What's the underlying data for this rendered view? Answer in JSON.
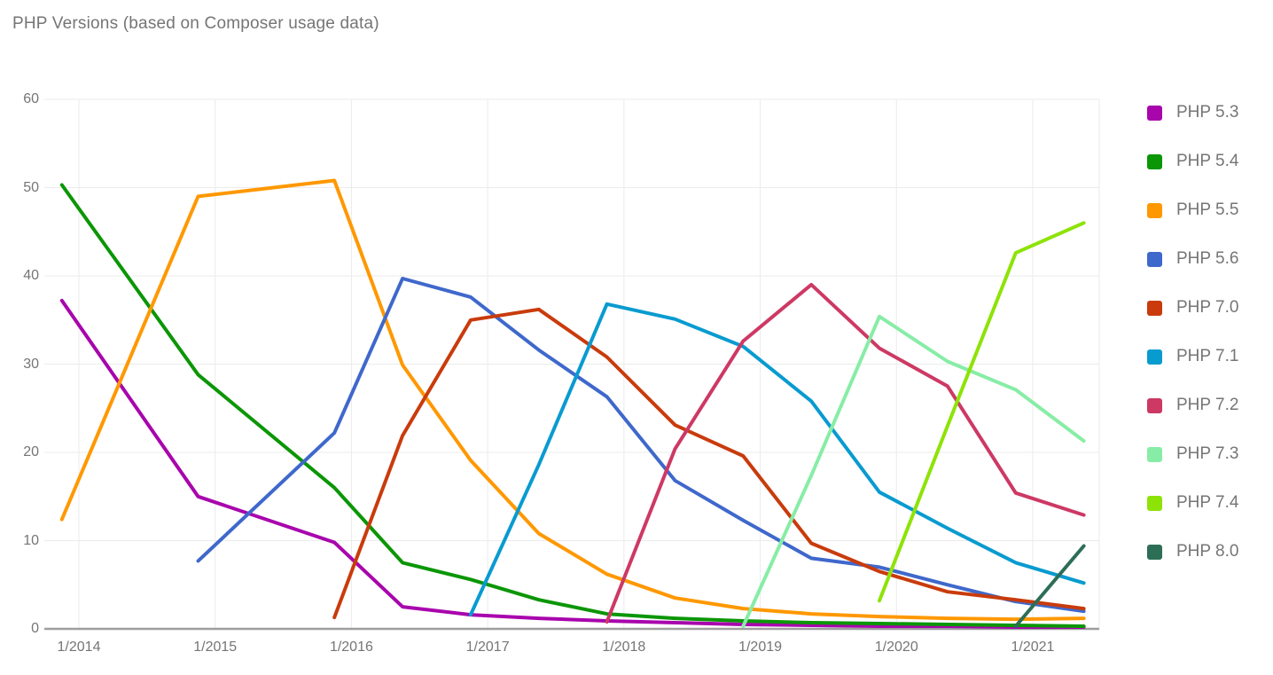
{
  "title": "PHP Versions (based on Composer usage data)",
  "chart_data": {
    "type": "line",
    "title": "PHP Versions (based on Composer usage data)",
    "xlabel": "",
    "ylabel": "",
    "x_tick_labels": [
      "1/2014",
      "1/2015",
      "1/2016",
      "1/2017",
      "1/2018",
      "1/2019",
      "1/2020",
      "1/2021"
    ],
    "y_ticks": [
      0,
      10,
      20,
      30,
      40,
      50,
      60
    ],
    "ylim": [
      0,
      60
    ],
    "grid": true,
    "legend_position": "right",
    "colors": {
      "axis": "#9e9e9e",
      "grid": "#ebebeb",
      "text": "#757575"
    },
    "series": [
      {
        "name": "PHP 5.3",
        "color": "#a805ad",
        "points": [
          [
            "2013-11",
            37.2
          ],
          [
            "2014-11",
            15.0
          ],
          [
            "2015-11",
            9.8
          ],
          [
            "2016-05",
            2.5
          ],
          [
            "2016-11",
            1.6
          ],
          [
            "2017-05",
            1.2
          ],
          [
            "2017-11",
            0.9
          ],
          [
            "2018-05",
            0.7
          ],
          [
            "2018-11",
            0.5
          ],
          [
            "2019-05",
            0.4
          ],
          [
            "2019-11",
            0.3
          ],
          [
            "2020-05",
            0.3
          ],
          [
            "2020-11",
            0.2
          ],
          [
            "2021-05",
            0.2
          ]
        ]
      },
      {
        "name": "PHP 5.4",
        "color": "#0b9606",
        "points": [
          [
            "2013-11",
            50.3
          ],
          [
            "2014-11",
            28.8
          ],
          [
            "2015-11",
            16.0
          ],
          [
            "2016-05",
            7.5
          ],
          [
            "2016-11",
            5.6
          ],
          [
            "2017-05",
            3.3
          ],
          [
            "2017-11",
            1.7
          ],
          [
            "2018-05",
            1.2
          ],
          [
            "2018-11",
            0.9
          ],
          [
            "2019-05",
            0.7
          ],
          [
            "2019-11",
            0.6
          ],
          [
            "2020-05",
            0.5
          ],
          [
            "2020-11",
            0.4
          ],
          [
            "2021-05",
            0.3
          ]
        ]
      },
      {
        "name": "PHP 5.5",
        "color": "#ff9800",
        "points": [
          [
            "2013-11",
            12.4
          ],
          [
            "2014-11",
            49.0
          ],
          [
            "2015-11",
            50.8
          ],
          [
            "2016-05",
            29.9
          ],
          [
            "2016-11",
            19.1
          ],
          [
            "2017-05",
            10.8
          ],
          [
            "2017-11",
            6.2
          ],
          [
            "2018-05",
            3.5
          ],
          [
            "2018-11",
            2.3
          ],
          [
            "2019-05",
            1.7
          ],
          [
            "2019-11",
            1.4
          ],
          [
            "2020-05",
            1.2
          ],
          [
            "2020-11",
            1.1
          ],
          [
            "2021-05",
            1.2
          ]
        ]
      },
      {
        "name": "PHP 5.6",
        "color": "#3f68cc",
        "points": [
          [
            "2014-11",
            7.7
          ],
          [
            "2015-11",
            22.2
          ],
          [
            "2016-05",
            39.7
          ],
          [
            "2016-11",
            37.6
          ],
          [
            "2017-05",
            31.6
          ],
          [
            "2017-11",
            26.3
          ],
          [
            "2018-05",
            16.8
          ],
          [
            "2018-11",
            12.3
          ],
          [
            "2019-05",
            8.0
          ],
          [
            "2019-11",
            7.0
          ],
          [
            "2020-05",
            5.0
          ],
          [
            "2020-11",
            3.1
          ],
          [
            "2021-05",
            2.0
          ]
        ]
      },
      {
        "name": "PHP 7.0",
        "color": "#c93b0c",
        "points": [
          [
            "2015-11",
            1.3
          ],
          [
            "2016-05",
            21.9
          ],
          [
            "2016-11",
            35.0
          ],
          [
            "2017-05",
            36.2
          ],
          [
            "2017-11",
            30.8
          ],
          [
            "2018-05",
            23.1
          ],
          [
            "2018-11",
            19.6
          ],
          [
            "2019-05",
            9.7
          ],
          [
            "2019-11",
            6.5
          ],
          [
            "2020-05",
            4.2
          ],
          [
            "2020-11",
            3.3
          ],
          [
            "2021-05",
            2.3
          ]
        ]
      },
      {
        "name": "PHP 7.1",
        "color": "#089bd0",
        "points": [
          [
            "2016-11",
            1.6
          ],
          [
            "2017-05",
            18.6
          ],
          [
            "2017-11",
            36.8
          ],
          [
            "2018-05",
            35.1
          ],
          [
            "2018-11",
            32.0
          ],
          [
            "2019-05",
            25.8
          ],
          [
            "2019-11",
            15.5
          ],
          [
            "2020-05",
            11.4
          ],
          [
            "2020-11",
            7.5
          ],
          [
            "2021-05",
            5.2
          ]
        ]
      },
      {
        "name": "PHP 7.2",
        "color": "#cd3964",
        "points": [
          [
            "2017-11",
            0.8
          ],
          [
            "2018-05",
            20.4
          ],
          [
            "2018-11",
            32.6
          ],
          [
            "2019-05",
            39.0
          ],
          [
            "2019-11",
            31.8
          ],
          [
            "2020-05",
            27.5
          ],
          [
            "2020-11",
            15.4
          ],
          [
            "2021-05",
            12.9
          ]
        ]
      },
      {
        "name": "PHP 7.3",
        "color": "#87eda6",
        "points": [
          [
            "2018-11",
            0.3
          ],
          [
            "2019-05",
            17.4
          ],
          [
            "2019-11",
            35.4
          ],
          [
            "2020-05",
            30.3
          ],
          [
            "2020-11",
            27.1
          ],
          [
            "2021-05",
            21.3
          ]
        ]
      },
      {
        "name": "PHP 7.4",
        "color": "#8de307",
        "points": [
          [
            "2019-11",
            3.2
          ],
          [
            "2020-05",
            23.0
          ],
          [
            "2020-11",
            42.6
          ],
          [
            "2021-05",
            46.0
          ]
        ]
      },
      {
        "name": "PHP 8.0",
        "color": "#2d6e56",
        "points": [
          [
            "2020-11",
            0.3
          ],
          [
            "2021-05",
            9.4
          ]
        ]
      }
    ]
  }
}
